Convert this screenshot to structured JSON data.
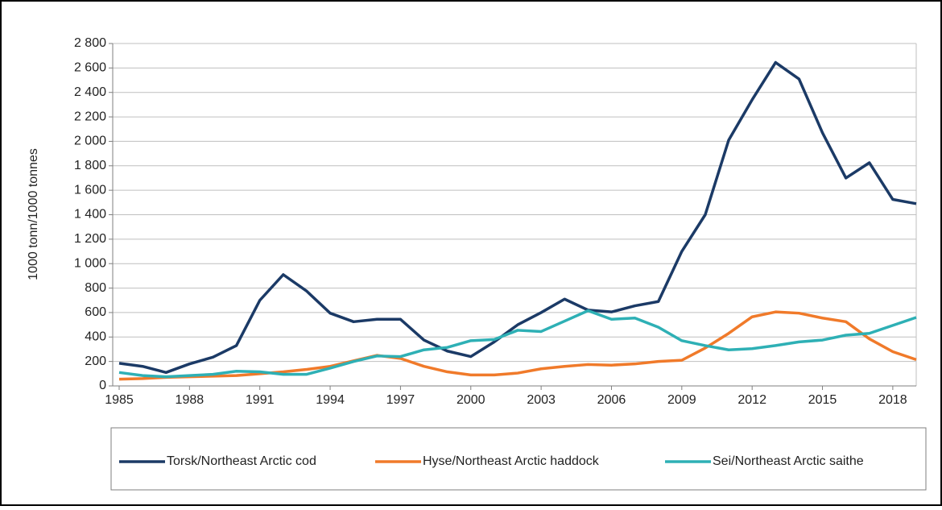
{
  "chart_data": {
    "type": "line",
    "y_label": "1000 tonn/1000 tonnes",
    "x": [
      1985,
      1986,
      1987,
      1988,
      1989,
      1990,
      1991,
      1992,
      1993,
      1994,
      1995,
      1996,
      1997,
      1998,
      1999,
      2000,
      2001,
      2002,
      2003,
      2004,
      2005,
      2006,
      2007,
      2008,
      2009,
      2010,
      2011,
      2012,
      2013,
      2014,
      2015,
      2016,
      2017,
      2018,
      2019
    ],
    "series": [
      {
        "name": "Torsk/Northeast Arctic cod",
        "color": "#1b3a66",
        "values": [
          185,
          160,
          110,
          180,
          235,
          330,
          700,
          910,
          775,
          595,
          525,
          545,
          545,
          375,
          285,
          240,
          360,
          500,
          600,
          710,
          620,
          605,
          655,
          690,
          1100,
          1400,
          2010,
          2340,
          2645,
          2510,
          2070,
          1700,
          1825,
          1525,
          1490
        ]
      },
      {
        "name": "Hyse/Northeast Arctic haddock",
        "color": "#f07a2a",
        "values": [
          55,
          60,
          70,
          75,
          80,
          85,
          100,
          115,
          135,
          160,
          205,
          250,
          225,
          160,
          115,
          90,
          90,
          105,
          140,
          160,
          175,
          170,
          180,
          200,
          210,
          310,
          430,
          565,
          605,
          595,
          555,
          525,
          385,
          280,
          215
        ]
      },
      {
        "name": "Sei/Northeast Arctic saithe",
        "color": "#2eb0b5",
        "values": [
          110,
          85,
          75,
          85,
          95,
          120,
          115,
          95,
          95,
          145,
          200,
          245,
          240,
          295,
          315,
          370,
          380,
          455,
          445,
          530,
          615,
          545,
          555,
          480,
          370,
          330,
          295,
          305,
          330,
          360,
          375,
          415,
          430,
          495,
          560
        ]
      }
    ],
    "xlim": [
      1985,
      2019
    ],
    "xticks": [
      1985,
      1988,
      1991,
      1994,
      1997,
      2000,
      2003,
      2006,
      2009,
      2012,
      2015,
      2018
    ],
    "ylim": [
      0,
      2800
    ],
    "yticks": [
      0,
      200,
      400,
      600,
      800,
      {
        "value": 1000,
        "label": "1 000"
      },
      {
        "value": 1200,
        "label": "1 200"
      },
      {
        "value": 1400,
        "label": "1 400"
      },
      {
        "value": 1600,
        "label": "1 600"
      },
      {
        "value": 1800,
        "label": "1 800"
      },
      {
        "value": 2000,
        "label": "2 000"
      },
      {
        "value": 2200,
        "label": "2 200"
      },
      {
        "value": 2400,
        "label": "2 400"
      },
      {
        "value": 2600,
        "label": "2 600"
      },
      {
        "value": 2800,
        "label": "2 800"
      }
    ],
    "grid": true
  }
}
